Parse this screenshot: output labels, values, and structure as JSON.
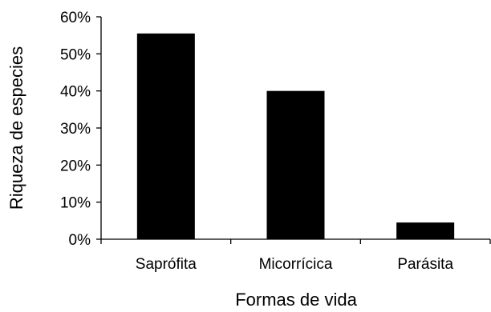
{
  "chart_data": {
    "type": "bar",
    "categories": [
      "Saprófita",
      "Micorrícica",
      "Parásita"
    ],
    "values": [
      55.5,
      40,
      4.5
    ],
    "xlabel": "Formas de vida",
    "ylabel": "Riqueza de especies",
    "ylim": [
      0,
      60
    ],
    "yticks": [
      "0%",
      "10%",
      "20%",
      "30%",
      "40%",
      "50%",
      "60%"
    ],
    "grid": false,
    "bar_color": "#000000"
  }
}
